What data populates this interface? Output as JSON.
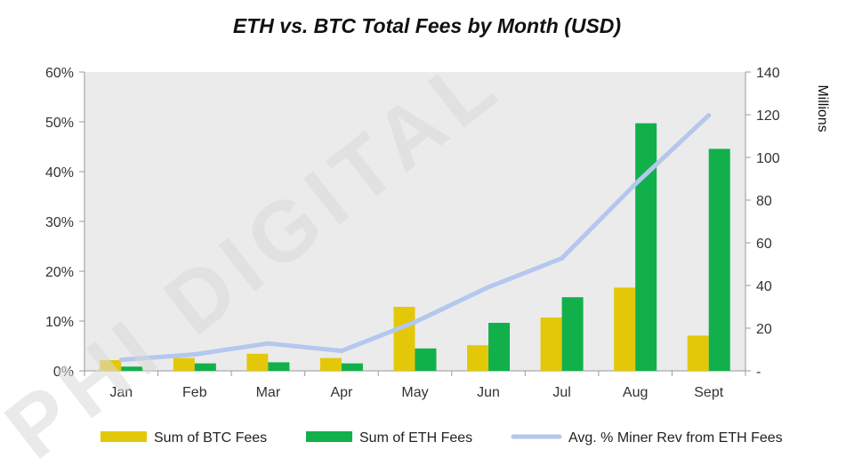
{
  "chart_data": {
    "type": "bar",
    "title": "ETH vs. BTC Total Fees by Month (USD)",
    "watermark": "PHI DIGITAL",
    "categories": [
      "Jan",
      "Feb",
      "Mar",
      "Apr",
      "May",
      "Jun",
      "Jul",
      "Aug",
      "Sept"
    ],
    "y_left": {
      "range": [
        0,
        60
      ],
      "ticks": [
        0,
        10,
        20,
        30,
        40,
        50,
        60
      ],
      "tick_labels": [
        "0%",
        "10%",
        "20%",
        "30%",
        "40%",
        "50%",
        "60%"
      ]
    },
    "y_right": {
      "label": "Millions",
      "range": [
        0,
        140
      ],
      "ticks": [
        0,
        20,
        40,
        60,
        80,
        100,
        120,
        140
      ],
      "tick_labels": [
        "-",
        "20",
        "40",
        "60",
        "80",
        "100",
        "120",
        "140"
      ]
    },
    "series": [
      {
        "name": "Sum of BTC Fees",
        "type": "bar",
        "axis": "right",
        "color": "#e3c80a",
        "values": [
          5,
          6,
          8,
          6,
          30,
          12,
          25,
          39,
          16.5
        ]
      },
      {
        "name": "Sum of ETH Fees",
        "type": "bar",
        "axis": "right",
        "color": "#11b04b",
        "values": [
          2,
          3.5,
          4,
          3.5,
          10.5,
          22.5,
          34.5,
          116,
          104
        ]
      },
      {
        "name": "Avg. % Miner Rev from ETH Fees",
        "type": "line",
        "axis": "left",
        "color": "#b4c7ee",
        "values": [
          2.2,
          3.3,
          5.5,
          4.0,
          9.8,
          16.8,
          22.6,
          37.5,
          51.3
        ]
      }
    ],
    "legend_position": "bottom",
    "grid": false,
    "plot_background": "#ebebeb"
  }
}
